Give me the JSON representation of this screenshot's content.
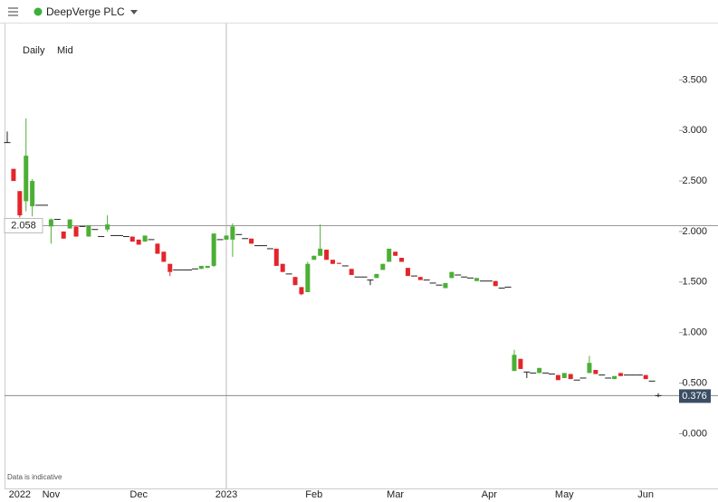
{
  "header": {
    "title": "DeepVerge PLC"
  },
  "chart_data": {
    "type": "candlestick",
    "interval": "Daily",
    "price_type": "Mid",
    "footnote": "Data is indicative",
    "up_color": "#4caf35",
    "down_color": "#e3252b",
    "flat_color": "#222222",
    "ylim": [
      -0.542,
      4.058
    ],
    "yticks": [
      {
        "value": 0,
        "label": "0.000"
      },
      {
        "value": 0.5,
        "label": "0.500"
      },
      {
        "value": 1,
        "label": "1.000"
      },
      {
        "value": 1.5,
        "label": "1.500"
      },
      {
        "value": 2,
        "label": "2.000"
      },
      {
        "value": 2.5,
        "label": "2.500"
      },
      {
        "value": 3,
        "label": "3.000"
      },
      {
        "value": 3.5,
        "label": "3.500"
      }
    ],
    "reference_line": 2.058,
    "last_price": 0.376,
    "categories": [
      null,
      null,
      "2022",
      null,
      null,
      null,
      null,
      "Nov",
      null,
      null,
      null,
      null,
      null,
      null,
      null,
      null,
      null,
      null,
      null,
      null,
      null,
      "Dec",
      null,
      null,
      null,
      null,
      null,
      null,
      null,
      null,
      null,
      null,
      null,
      null,
      null,
      "2023",
      null,
      null,
      null,
      null,
      null,
      null,
      null,
      null,
      null,
      null,
      null,
      null,
      null,
      "Feb",
      null,
      null,
      null,
      null,
      null,
      null,
      null,
      null,
      null,
      null,
      null,
      null,
      "Mar",
      null,
      null,
      null,
      null,
      null,
      null,
      null,
      null,
      null,
      null,
      null,
      null,
      null,
      null,
      "Apr",
      null,
      null,
      null,
      null,
      null,
      null,
      null,
      null,
      null,
      null,
      null,
      "May",
      null,
      null,
      null,
      null,
      null,
      null,
      null,
      null,
      null,
      null,
      null,
      null,
      "Jun",
      null,
      null
    ],
    "ohlc": [
      [
        2.88,
        2.99,
        2.88,
        2.88
      ],
      [
        2.62,
        2.62,
        2.5,
        2.5
      ],
      [
        2.4,
        2.4,
        2.14,
        2.16
      ],
      [
        2.3,
        3.12,
        2.2,
        2.75
      ],
      [
        2.25,
        2.52,
        2.15,
        2.5
      ],
      [
        2.26,
        2.26,
        2.26,
        2.26
      ],
      [
        2.26,
        2.26,
        2.26,
        2.26
      ],
      [
        2.05,
        2.13,
        1.88,
        2.12
      ],
      [
        2.12,
        2.12,
        2.12,
        2.12
      ],
      [
        2.0,
        2.0,
        1.93,
        1.93
      ],
      [
        2.03,
        2.12,
        2.03,
        2.12
      ],
      [
        2.05,
        2.05,
        1.95,
        1.95
      ],
      [
        2.05,
        2.05,
        2.05,
        2.05
      ],
      [
        1.95,
        2.06,
        1.95,
        2.06
      ],
      [
        2.02,
        2.02,
        2.02,
        2.02
      ],
      [
        1.95,
        1.95,
        1.95,
        1.95
      ],
      [
        2.02,
        2.16,
        2.0,
        2.07
      ],
      [
        1.96,
        1.96,
        1.96,
        1.96
      ],
      [
        1.96,
        1.96,
        1.96,
        1.96
      ],
      [
        1.95,
        1.95,
        1.95,
        1.95
      ],
      [
        1.95,
        1.95,
        1.9,
        1.9
      ],
      [
        1.92,
        1.92,
        1.87,
        1.87
      ],
      [
        1.9,
        1.96,
        1.9,
        1.96
      ],
      [
        1.92,
        1.92,
        1.92,
        1.92
      ],
      [
        1.88,
        1.88,
        1.78,
        1.78
      ],
      [
        1.8,
        1.8,
        1.7,
        1.7
      ],
      [
        1.68,
        1.68,
        1.56,
        1.6
      ],
      [
        1.62,
        1.62,
        1.62,
        1.62
      ],
      [
        1.62,
        1.62,
        1.62,
        1.62
      ],
      [
        1.62,
        1.62,
        1.62,
        1.62
      ],
      [
        1.63,
        1.63,
        1.63,
        1.63
      ],
      [
        1.63,
        1.66,
        1.63,
        1.66
      ],
      [
        1.64,
        1.66,
        1.64,
        1.66
      ],
      [
        1.66,
        1.98,
        1.65,
        1.98
      ],
      [
        1.92,
        1.92,
        1.92,
        1.92
      ],
      [
        1.92,
        1.96,
        1.92,
        1.96
      ],
      [
        1.92,
        2.08,
        1.75,
        2.05
      ],
      [
        1.97,
        1.97,
        1.97,
        1.97
      ],
      [
        1.93,
        1.93,
        1.93,
        1.93
      ],
      [
        1.93,
        1.93,
        1.88,
        1.88
      ],
      [
        1.86,
        1.86,
        1.86,
        1.86
      ],
      [
        1.86,
        1.86,
        1.86,
        1.86
      ],
      [
        1.83,
        1.83,
        1.83,
        1.83
      ],
      [
        1.83,
        1.83,
        1.66,
        1.66
      ],
      [
        1.68,
        1.68,
        1.6,
        1.6
      ],
      [
        1.58,
        1.58,
        1.58,
        1.58
      ],
      [
        1.55,
        1.55,
        1.47,
        1.47
      ],
      [
        1.45,
        1.45,
        1.37,
        1.38
      ],
      [
        1.4,
        1.7,
        1.4,
        1.68
      ],
      [
        1.72,
        1.76,
        1.72,
        1.76
      ],
      [
        1.76,
        2.07,
        1.76,
        1.83
      ],
      [
        1.82,
        1.82,
        1.72,
        1.72
      ],
      [
        1.72,
        1.72,
        1.68,
        1.68
      ],
      [
        1.69,
        1.69,
        1.68,
        1.68
      ],
      [
        1.66,
        1.66,
        1.66,
        1.66
      ],
      [
        1.63,
        1.63,
        1.57,
        1.57
      ],
      [
        1.55,
        1.55,
        1.55,
        1.55
      ],
      [
        1.55,
        1.55,
        1.55,
        1.55
      ],
      [
        1.52,
        1.52,
        1.47,
        1.52
      ],
      [
        1.54,
        1.58,
        1.54,
        1.58
      ],
      [
        1.62,
        1.68,
        1.62,
        1.68
      ],
      [
        1.7,
        1.83,
        1.7,
        1.83
      ],
      [
        1.8,
        1.8,
        1.76,
        1.76
      ],
      [
        1.74,
        1.74,
        1.7,
        1.7
      ],
      [
        1.64,
        1.64,
        1.56,
        1.56
      ],
      [
        1.56,
        1.56,
        1.56,
        1.56
      ],
      [
        1.55,
        1.55,
        1.52,
        1.52
      ],
      [
        1.52,
        1.52,
        1.52,
        1.52
      ],
      [
        1.49,
        1.49,
        1.49,
        1.49
      ],
      [
        1.47,
        1.47,
        1.47,
        1.47
      ],
      [
        1.44,
        1.49,
        1.44,
        1.49
      ],
      [
        1.54,
        1.6,
        1.54,
        1.6
      ],
      [
        1.57,
        1.57,
        1.57,
        1.57
      ],
      [
        1.55,
        1.55,
        1.55,
        1.55
      ],
      [
        1.54,
        1.54,
        1.54,
        1.54
      ],
      [
        1.51,
        1.54,
        1.51,
        1.54
      ],
      [
        1.51,
        1.51,
        1.51,
        1.51
      ],
      [
        1.51,
        1.51,
        1.51,
        1.51
      ],
      [
        1.51,
        1.51,
        1.46,
        1.46
      ],
      [
        1.44,
        1.44,
        1.44,
        1.44
      ],
      [
        1.45,
        1.45,
        1.45,
        1.45
      ],
      [
        0.62,
        0.83,
        0.62,
        0.78
      ],
      [
        0.74,
        0.74,
        0.64,
        0.64
      ],
      [
        0.61,
        0.61,
        0.55,
        0.61
      ],
      [
        0.6,
        0.6,
        0.6,
        0.6
      ],
      [
        0.6,
        0.65,
        0.6,
        0.65
      ],
      [
        0.6,
        0.6,
        0.6,
        0.6
      ],
      [
        0.59,
        0.59,
        0.59,
        0.59
      ],
      [
        0.58,
        0.58,
        0.53,
        0.53
      ],
      [
        0.55,
        0.6,
        0.55,
        0.6
      ],
      [
        0.59,
        0.59,
        0.54,
        0.54
      ],
      [
        0.53,
        0.53,
        0.53,
        0.53
      ],
      [
        0.55,
        0.55,
        0.55,
        0.55
      ],
      [
        0.6,
        0.77,
        0.6,
        0.7
      ],
      [
        0.63,
        0.63,
        0.59,
        0.59
      ],
      [
        0.58,
        0.58,
        0.58,
        0.58
      ],
      [
        0.55,
        0.55,
        0.55,
        0.55
      ],
      [
        0.54,
        0.57,
        0.54,
        0.57
      ],
      [
        0.6,
        0.6,
        0.57,
        0.57
      ],
      [
        0.58,
        0.58,
        0.58,
        0.58
      ],
      [
        0.58,
        0.58,
        0.58,
        0.58
      ],
      [
        0.58,
        0.58,
        0.58,
        0.58
      ],
      [
        0.58,
        0.58,
        0.54,
        0.54
      ],
      [
        0.52,
        0.52,
        0.52,
        0.52
      ],
      [
        0.376,
        0.4,
        0.36,
        0.376
      ]
    ]
  }
}
